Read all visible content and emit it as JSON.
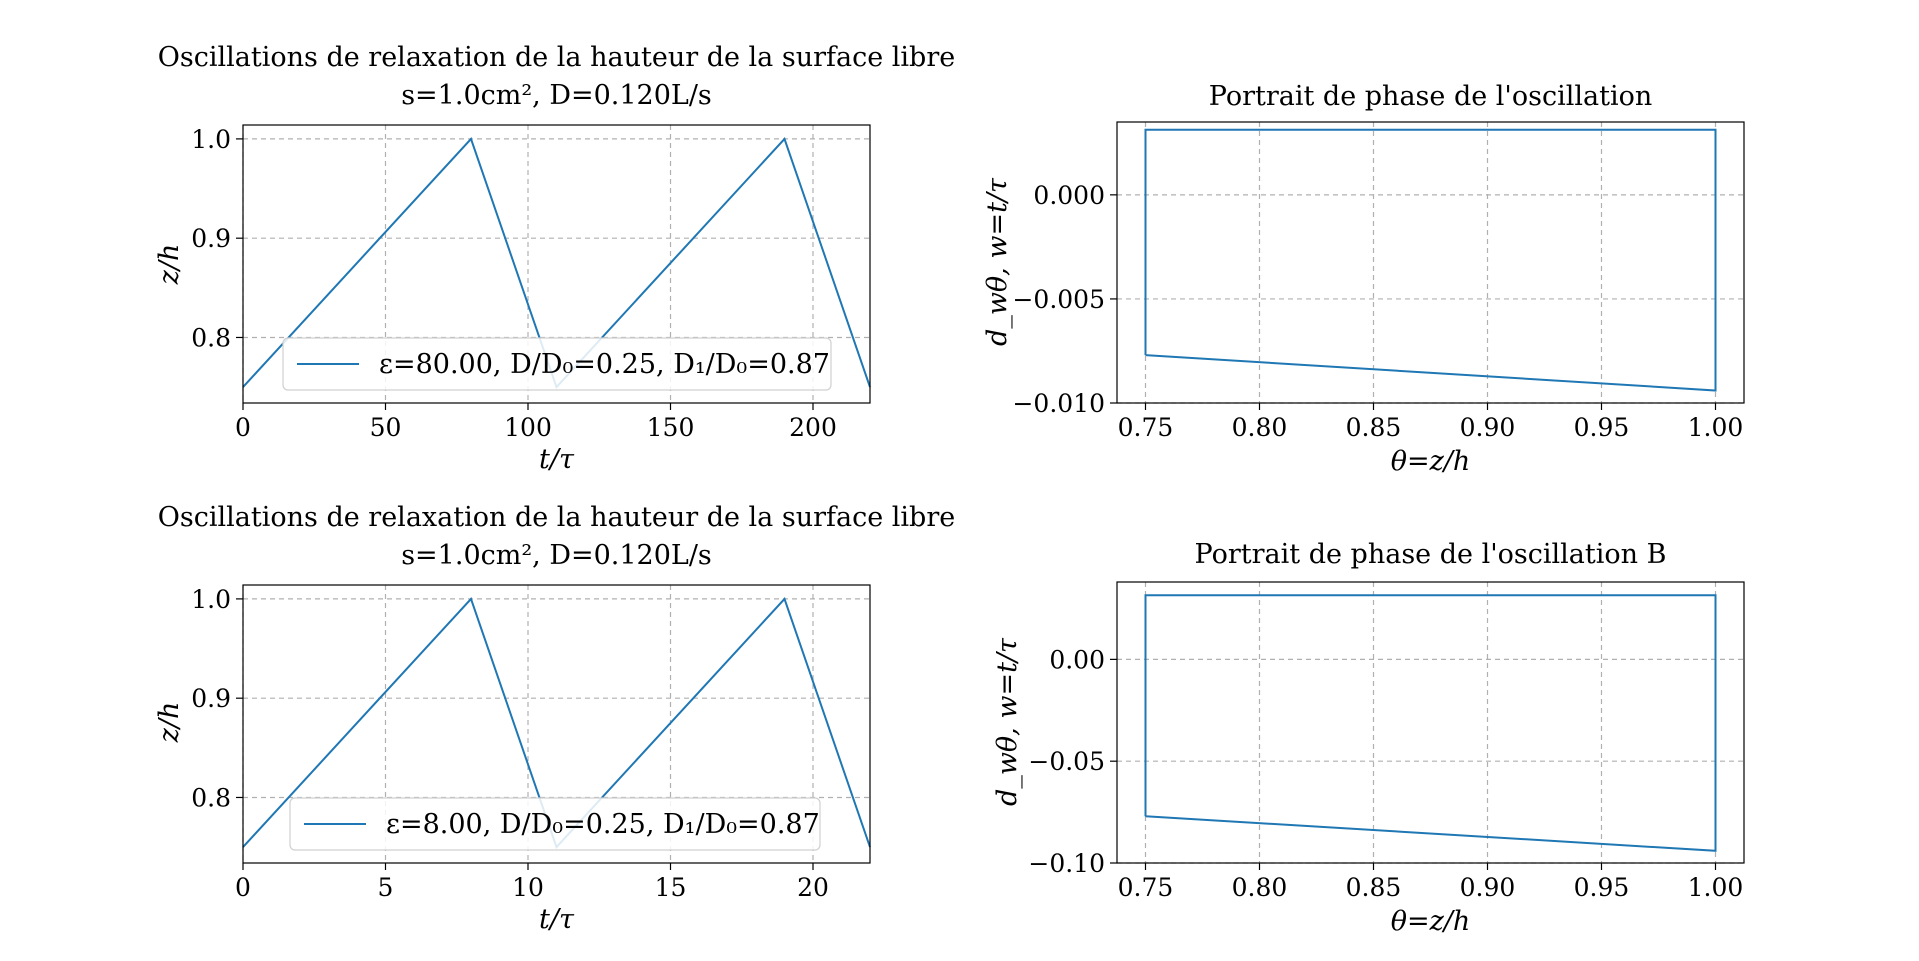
{
  "chart_data": [
    {
      "id": "p1",
      "type": "line",
      "title_lines": [
        "Oscillations de relaxation de la hauteur de la surface libre",
        "s=1.0cm², D=0.120L/s"
      ],
      "xlabel": "t/τ",
      "ylabel": "z/h",
      "xlim": [
        0,
        220
      ],
      "ylim": [
        0.734,
        1.014
      ],
      "xticks": [
        0,
        50,
        100,
        150,
        200
      ],
      "xtick_labels": [
        "0",
        "50",
        "100",
        "150",
        "200"
      ],
      "yticks": [
        0.8,
        0.9,
        1.0
      ],
      "ytick_labels": [
        "0.8",
        "0.9",
        "1.0"
      ],
      "grid": true,
      "legend": {
        "placement": "lower-center",
        "label": "ε=80.00, D/D₀=0.25, D₁/D₀=0.87"
      },
      "series": [
        {
          "x": [
            0,
            80,
            110,
            190,
            220
          ],
          "y": [
            0.75,
            1.0,
            0.75,
            1.0,
            0.75
          ]
        }
      ]
    },
    {
      "id": "p2",
      "type": "line",
      "title_lines": [
        "Portrait de phase de l'oscillation"
      ],
      "xlabel": "θ=z/h",
      "ylabel": "d_wθ,   w=t/τ",
      "xlim": [
        0.7375,
        1.0125
      ],
      "ylim": [
        -0.01,
        0.0035
      ],
      "xticks": [
        0.75,
        0.8,
        0.85,
        0.9,
        0.95,
        1.0
      ],
      "xtick_labels": [
        "0.75",
        "0.80",
        "0.85",
        "0.90",
        "0.95",
        "1.00"
      ],
      "yticks": [
        -0.01,
        -0.005,
        0.0
      ],
      "ytick_labels": [
        "−0.010",
        "−0.005",
        "0.000"
      ],
      "grid": true,
      "series": [
        {
          "x": [
            0.75,
            0.75,
            1.0,
            1.0,
            0.75
          ],
          "y": [
            -0.0077,
            0.00313,
            0.00313,
            -0.0094,
            -0.0077
          ]
        }
      ]
    },
    {
      "id": "p3",
      "type": "line",
      "title_lines": [
        "Oscillations de relaxation de la hauteur de la surface libre",
        "s=1.0cm², D=0.120L/s"
      ],
      "xlabel": "t/τ",
      "ylabel": "z/h",
      "xlim": [
        0,
        22
      ],
      "ylim": [
        0.734,
        1.014
      ],
      "xticks": [
        0,
        5,
        10,
        15,
        20
      ],
      "xtick_labels": [
        "0",
        "5",
        "10",
        "15",
        "20"
      ],
      "yticks": [
        0.8,
        0.9,
        1.0
      ],
      "ytick_labels": [
        "0.8",
        "0.9",
        "1.0"
      ],
      "grid": true,
      "legend": {
        "placement": "lower-center",
        "label": "ε=8.00, D/D₀=0.25, D₁/D₀=0.87"
      },
      "series": [
        {
          "x": [
            0,
            8,
            11,
            19,
            22
          ],
          "y": [
            0.75,
            1.0,
            0.75,
            1.0,
            0.75
          ]
        }
      ]
    },
    {
      "id": "p4",
      "type": "line",
      "title_lines": [
        "Portrait de phase de l'oscillation B"
      ],
      "xlabel": "θ=z/h",
      "ylabel": "d_wθ,   w=t/τ",
      "xlim": [
        0.7375,
        1.0125
      ],
      "ylim": [
        -0.1,
        0.038
      ],
      "xticks": [
        0.75,
        0.8,
        0.85,
        0.9,
        0.95,
        1.0
      ],
      "xtick_labels": [
        "0.75",
        "0.80",
        "0.85",
        "0.90",
        "0.95",
        "1.00"
      ],
      "yticks": [
        -0.1,
        -0.05,
        0.0
      ],
      "ytick_labels": [
        "−0.10",
        "−0.05",
        "0.00"
      ],
      "grid": true,
      "series": [
        {
          "x": [
            0.75,
            0.75,
            1.0,
            1.0,
            0.75
          ],
          "y": [
            -0.077,
            0.0315,
            0.0315,
            -0.094,
            -0.077
          ]
        }
      ]
    }
  ]
}
